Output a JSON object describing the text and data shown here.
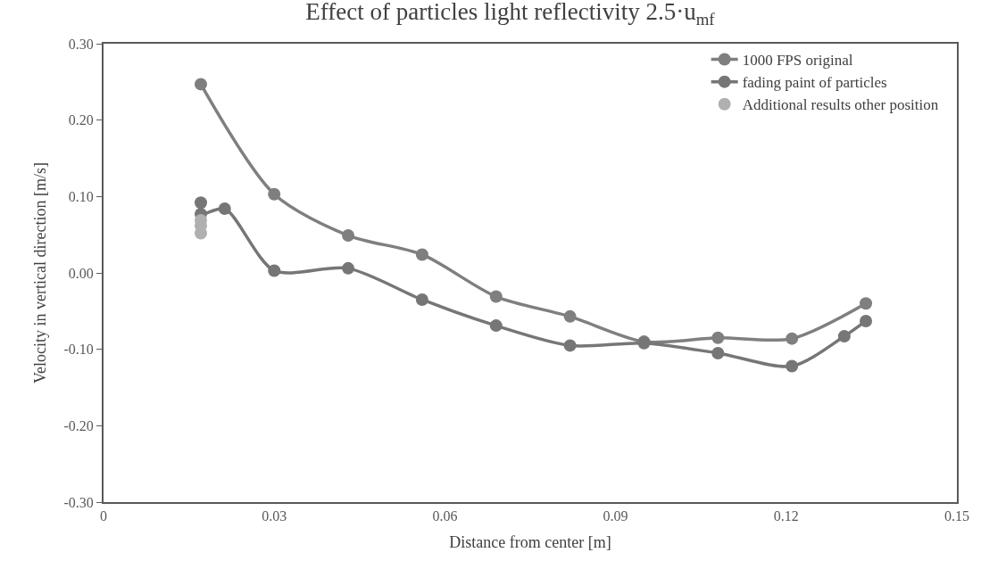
{
  "chart_data": {
    "type": "line",
    "title": "Effect of particles light reflectivity 2.5·u$_{mf}$",
    "xlabel": "Distance from center [m]",
    "ylabel": "Velocity in vertical direction [m/s]",
    "series": [
      {
        "name": "1000 FPS original",
        "color": "#7f7f7f",
        "x": [
          0.0171,
          0.03,
          0.043,
          0.056,
          0.069,
          0.082,
          0.095,
          0.108,
          0.121,
          0.134
        ],
        "values": [
          0.247,
          0.103,
          0.049,
          0.024,
          -0.031,
          -0.057,
          -0.09,
          -0.085,
          -0.086,
          -0.04
        ]
      },
      {
        "name": "fading paint of particles",
        "color": "#767676",
        "x": [
          0.0171,
          0.0171,
          0.0213,
          0.03,
          0.043,
          0.056,
          0.069,
          0.082,
          0.095,
          0.108,
          0.121,
          0.1302,
          0.134
        ],
        "values": [
          0.092,
          0.077,
          0.084,
          0.003,
          0.006,
          -0.035,
          -0.069,
          -0.095,
          -0.092,
          -0.105,
          -0.122,
          -0.083,
          -0.063
        ]
      },
      {
        "name": "Additional results other position",
        "type": "scatter",
        "color": "#b0b0b0",
        "x": [
          0.0171,
          0.0171,
          0.0171
        ],
        "values": [
          0.069,
          0.062,
          0.052
        ]
      }
    ],
    "xlim": [
      0,
      0.15
    ],
    "xticks": [
      0,
      0.03,
      0.06,
      0.09,
      0.12,
      0.15
    ],
    "ylim": [
      -0.3,
      0.3
    ],
    "yticks": [
      {
        "value": -0.3,
        "label": "-0.30"
      },
      {
        "value": -0.2,
        "label": "-0.20"
      },
      {
        "value": -0.1,
        "label": "-0.10"
      },
      {
        "value": 0,
        "label": "0.00"
      },
      {
        "value": 0.1,
        "label": "0.10"
      },
      {
        "value": 0.2,
        "label": "0.20"
      },
      {
        "value": 0.3,
        "label": "0.30"
      }
    ],
    "legend": "top right",
    "marker": "circle",
    "line_style": "solid"
  }
}
